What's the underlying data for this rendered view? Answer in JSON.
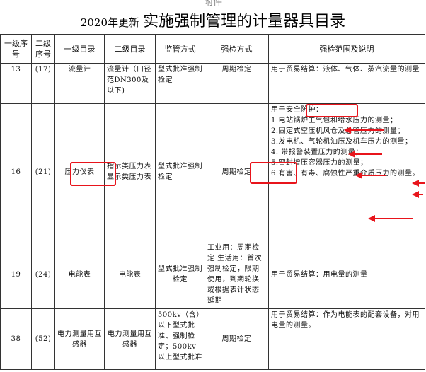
{
  "header_top": "附件",
  "title": {
    "year": "2020年更新",
    "main": "实施强制管理的计量器具目录"
  },
  "columns": [
    "一级序号",
    "二级序号",
    "一级目录",
    "二级目录",
    "监管方式",
    "强检方式",
    "强检范围及说明"
  ],
  "rows": [
    {
      "n1": "13",
      "n2": "(17)",
      "c1": "流量计",
      "c2": "流量计（口径范DN300及以下)",
      "sup": "型式批准强制检定",
      "insp": "周期检定",
      "scope": [
        "用于贸易结算：液体、气体、蒸汽流量的测量"
      ]
    },
    {
      "n1": "16",
      "n2": "(21)",
      "c1": "压力仪表",
      "c2": "指示类压力表显示类压力表",
      "sup": "型式批准强制检定",
      "insp": "周期检定",
      "scope": [
        "用于安全防护：",
        "1.电站锅炉主气包和给水压力的测量；",
        "2.固定式空压机风仓及总管压力的测量；",
        "3.发电机、气轮机油压及机车压力的测量；",
        "4. 带报警装置压力的测量；",
        "5.密封增压容器压力的测量；",
        "6.有害、有毒、腐蚀性严重介质压力的测量。"
      ]
    },
    {
      "n1": "19",
      "n2": "(24)",
      "c1": "电能表",
      "c2": "电能表",
      "sup": "型式批准强制检定",
      "insp": "工业用：周期检定 生活用：首次强制检定，限期使用，到期轮换或根据表计状态延期",
      "scope": [
        "用于贸易结算：用电量的测量"
      ]
    },
    {
      "n1": "38",
      "n2": "(52)",
      "c1": "电力测量用互感器",
      "c2": "电力测量用互感器",
      "sup": "500kv（含）以下型式批准、强制检定；500kv 以上型式批准",
      "insp": "周期检定",
      "scope": [
        "用于贸易结算：作为电能表的配套设备，对用电量的测量。"
      ]
    }
  ],
  "annotation_color": "#e8141b"
}
